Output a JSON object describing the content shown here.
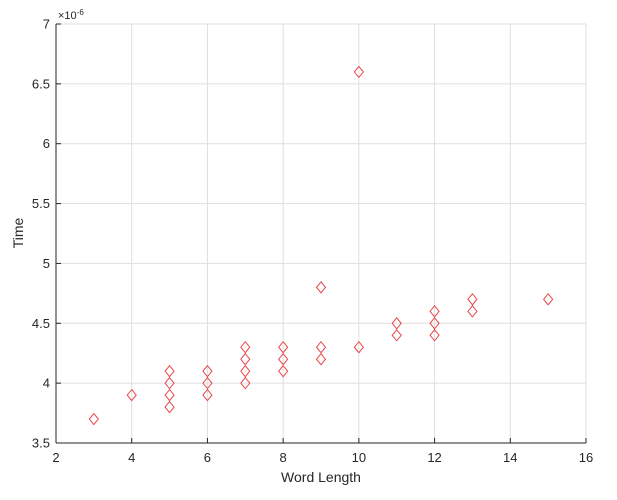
{
  "chart_data": {
    "type": "scatter",
    "xlabel": "Word Length",
    "ylabel": "Time",
    "xlim": [
      2,
      16
    ],
    "ylim": [
      3.5,
      7
    ],
    "y_exponent_label": "×10",
    "y_exponent_power": "-6",
    "grid": true,
    "marker": "diamond",
    "marker_color": "#e8474a",
    "x_ticks": [
      "2",
      "4",
      "6",
      "8",
      "10",
      "12",
      "14",
      "16"
    ],
    "y_ticks": [
      "3.5",
      "4",
      "4.5",
      "5",
      "5.5",
      "6",
      "6.5",
      "7"
    ],
    "points": [
      {
        "x": 3,
        "y": 3.7
      },
      {
        "x": 4,
        "y": 3.9
      },
      {
        "x": 5,
        "y": 3.8
      },
      {
        "x": 5,
        "y": 3.9
      },
      {
        "x": 5,
        "y": 4.0
      },
      {
        "x": 5,
        "y": 4.1
      },
      {
        "x": 6,
        "y": 3.9
      },
      {
        "x": 6,
        "y": 4.0
      },
      {
        "x": 6,
        "y": 4.1
      },
      {
        "x": 7,
        "y": 4.0
      },
      {
        "x": 7,
        "y": 4.1
      },
      {
        "x": 7,
        "y": 4.2
      },
      {
        "x": 7,
        "y": 4.3
      },
      {
        "x": 8,
        "y": 4.1
      },
      {
        "x": 8,
        "y": 4.2
      },
      {
        "x": 8,
        "y": 4.3
      },
      {
        "x": 9,
        "y": 4.2
      },
      {
        "x": 9,
        "y": 4.3
      },
      {
        "x": 9,
        "y": 4.8
      },
      {
        "x": 10,
        "y": 4.3
      },
      {
        "x": 10,
        "y": 6.6
      },
      {
        "x": 11,
        "y": 4.4
      },
      {
        "x": 11,
        "y": 4.5
      },
      {
        "x": 12,
        "y": 4.4
      },
      {
        "x": 12,
        "y": 4.5
      },
      {
        "x": 12,
        "y": 4.6
      },
      {
        "x": 13,
        "y": 4.6
      },
      {
        "x": 13,
        "y": 4.7
      },
      {
        "x": 15,
        "y": 4.7
      }
    ]
  }
}
